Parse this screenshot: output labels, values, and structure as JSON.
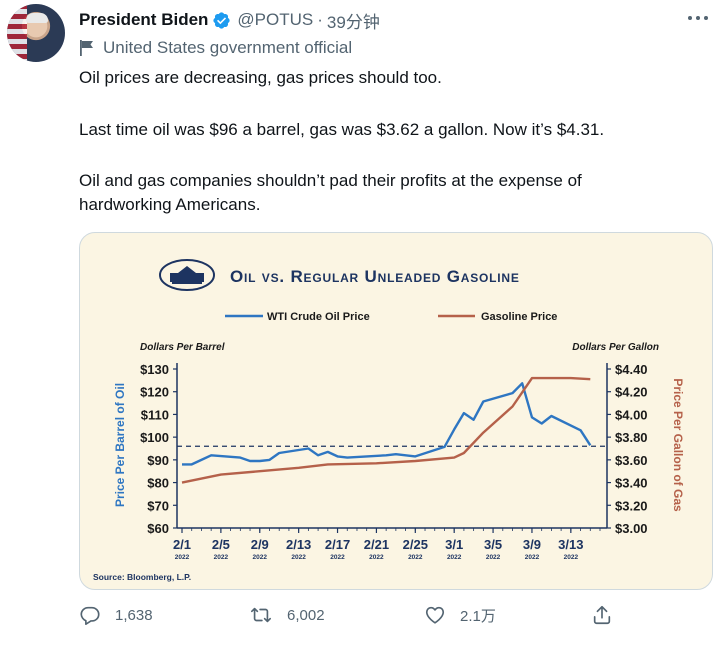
{
  "tweet": {
    "author_name": "President Biden",
    "handle": "@POTUS",
    "separator": "·",
    "time": "39分钟",
    "account_label": "United States government official",
    "paragraphs": [
      "Oil prices are decreasing, gas prices should too.",
      "Last time oil was $96 a barrel, gas was $3.62 a gallon. Now it’s $4.31.",
      "Oil and gas companies shouldn’t pad their profits at the expense of",
      "hardworking Americans."
    ]
  },
  "actions": {
    "replies": "1,638",
    "retweets": "6,002",
    "likes": "2.1万"
  },
  "colors": {
    "oil": "#2e76c2",
    "gas": "#b5614a",
    "navy": "#1d3461",
    "card_bg": "#fbf5e3",
    "verified": "#1d9bf0"
  },
  "icons": {
    "verified": "verified-badge-icon",
    "label": "flag-icon",
    "reply": "reply-icon",
    "retweet": "retweet-icon",
    "like": "heart-icon",
    "share": "share-icon",
    "more": "more-icon",
    "logo": "white-house-logo"
  },
  "chart_data": {
    "type": "line",
    "title": "Oil vs. Regular Unleaded Gasoline",
    "legend_placement": "top",
    "y_left_unit": "Dollars Per Barrel",
    "y_right_unit": "Dollars Per Gallon",
    "ylabel_left": "Price Per Barrel of Oil",
    "ylabel_right": "Price Per Gallon of Gas",
    "ylim_left": [
      60,
      130
    ],
    "ylim_right": [
      3.0,
      4.4
    ],
    "yticks_left": [
      "$130",
      "$120",
      "$110",
      "$100",
      "$90",
      "$80",
      "$70",
      "$60"
    ],
    "yticks_right": [
      "$4.40",
      "$4.20",
      "$4.00",
      "$3.80",
      "$3.60",
      "$3.40",
      "$3.20",
      "$3.00"
    ],
    "xticks": [
      "2/1",
      "2/5",
      "2/9",
      "2/13",
      "2/17",
      "2/21",
      "2/25",
      "3/1",
      "3/5",
      "3/9",
      "3/13"
    ],
    "xtick_year": "2022",
    "reference_line": {
      "value": 96,
      "axis": "left",
      "style": "dashed"
    },
    "source": "Source: Bloomberg, L.P.",
    "series": [
      {
        "name": "WTI Crude Oil Price",
        "axis": "left",
        "x": [
          "2/1",
          "2/2",
          "2/3",
          "2/4",
          "2/7",
          "2/8",
          "2/9",
          "2/10",
          "2/11",
          "2/14",
          "2/15",
          "2/16",
          "2/17",
          "2/18",
          "2/22",
          "2/23",
          "2/24",
          "2/25",
          "2/28",
          "3/1",
          "3/2",
          "3/3",
          "3/4",
          "3/7",
          "3/8",
          "3/9",
          "3/10",
          "3/11",
          "3/14",
          "3/15"
        ],
        "values": [
          88,
          88,
          90,
          92,
          91,
          89.5,
          89.5,
          90,
          93,
          95,
          92,
          93.5,
          91.5,
          91,
          92,
          92.5,
          92,
          91.5,
          95.7,
          103.4,
          110.6,
          107.7,
          115.7,
          119.4,
          123.7,
          108.7,
          106,
          109.3,
          103,
          96.4
        ]
      },
      {
        "name": "Gasoline Price",
        "axis": "right",
        "x": [
          "2/1",
          "2/5",
          "2/9",
          "2/13",
          "2/16",
          "2/21",
          "2/25",
          "3/1",
          "3/2",
          "3/4",
          "3/7",
          "3/9",
          "3/13",
          "3/15"
        ],
        "values": [
          3.4,
          3.47,
          3.5,
          3.53,
          3.56,
          3.57,
          3.59,
          3.62,
          3.66,
          3.84,
          4.07,
          4.32,
          4.32,
          4.31
        ]
      }
    ]
  }
}
